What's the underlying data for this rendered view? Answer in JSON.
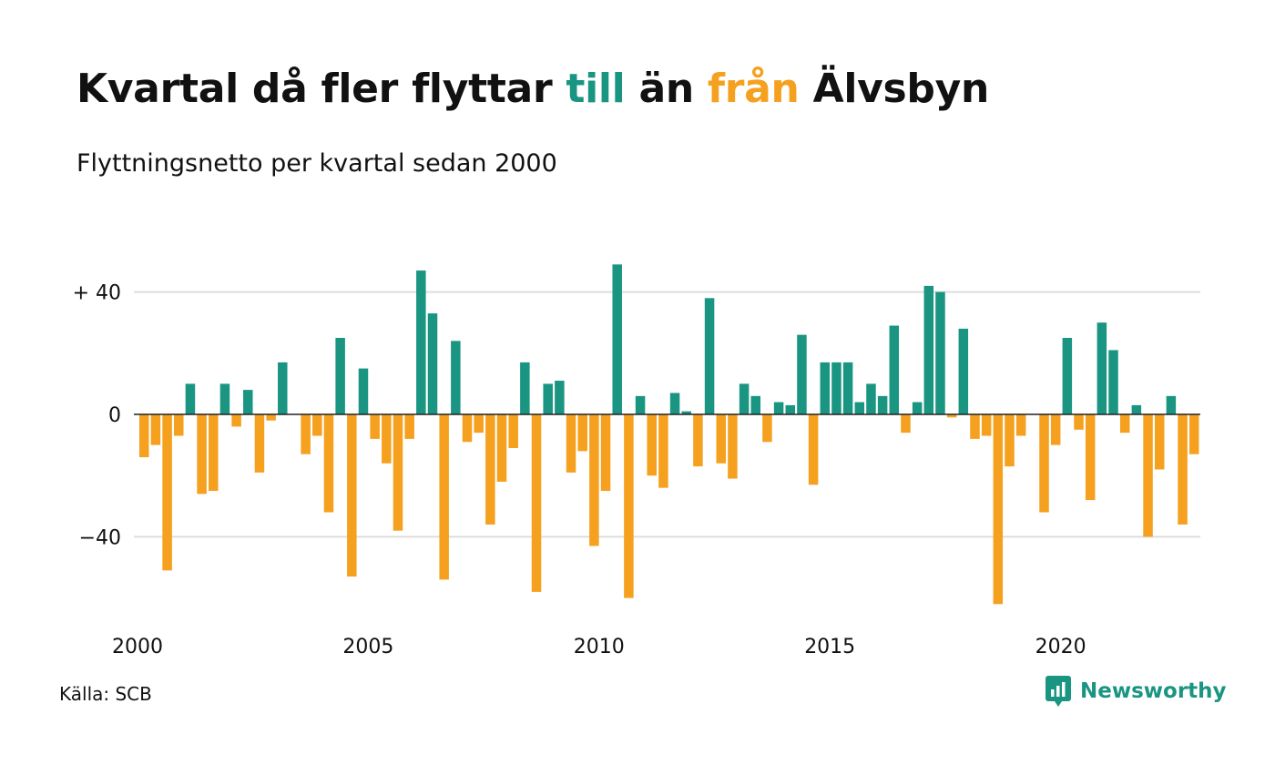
{
  "title": {
    "part1": "Kvartal då fler flyttar ",
    "part2": "till",
    "part3": " än ",
    "part4": "från",
    "part5": " Älvsbyn"
  },
  "subtitle": "Flyttningsnetto per kvartal sedan 2000",
  "source": "Källa: SCB",
  "logo": {
    "text": "Newsworthy",
    "icon": "newsworthy-chart-icon"
  },
  "colors": {
    "positive": "#1a9582",
    "negative": "#f5a01e",
    "grid": "#dddddd",
    "zero": "#222222"
  },
  "chart_data": {
    "type": "bar",
    "title": "Kvartal då fler flyttar till än från Älvsbyn",
    "subtitle": "Flyttningsnetto per kvartal sedan 2000",
    "xlabel": "",
    "ylabel": "",
    "ylim": [
      -65,
      50
    ],
    "yticks": [
      40,
      0,
      -40
    ],
    "ytick_labels": [
      "+ 40",
      "0",
      "−40"
    ],
    "xticks": [
      2000,
      2005,
      2010,
      2015,
      2020
    ],
    "x_start": 2000,
    "quarters_per_year": 4,
    "grid": true,
    "legend": "none",
    "values": [
      -14,
      -10,
      -51,
      -7,
      10,
      -26,
      -25,
      10,
      -4,
      8,
      -19,
      -2,
      17,
      0,
      -13,
      -7,
      -32,
      25,
      -53,
      15,
      -8,
      -16,
      -38,
      -8,
      47,
      33,
      -54,
      24,
      -9,
      -6,
      -36,
      -22,
      -11,
      17,
      -58,
      10,
      11,
      -19,
      -12,
      -43,
      -25,
      49,
      -60,
      6,
      -20,
      -24,
      7,
      1,
      -17,
      38,
      -16,
      -21,
      10,
      6,
      -9,
      4,
      3,
      26,
      -23,
      17,
      17,
      17,
      4,
      10,
      6,
      29,
      -6,
      4,
      42,
      40,
      -1,
      28,
      -8,
      -7,
      -62,
      -17,
      -7,
      0,
      -32,
      -10,
      25,
      -5,
      -28,
      30,
      21,
      -6,
      3,
      -40,
      -18,
      6,
      -36,
      -13
    ]
  }
}
